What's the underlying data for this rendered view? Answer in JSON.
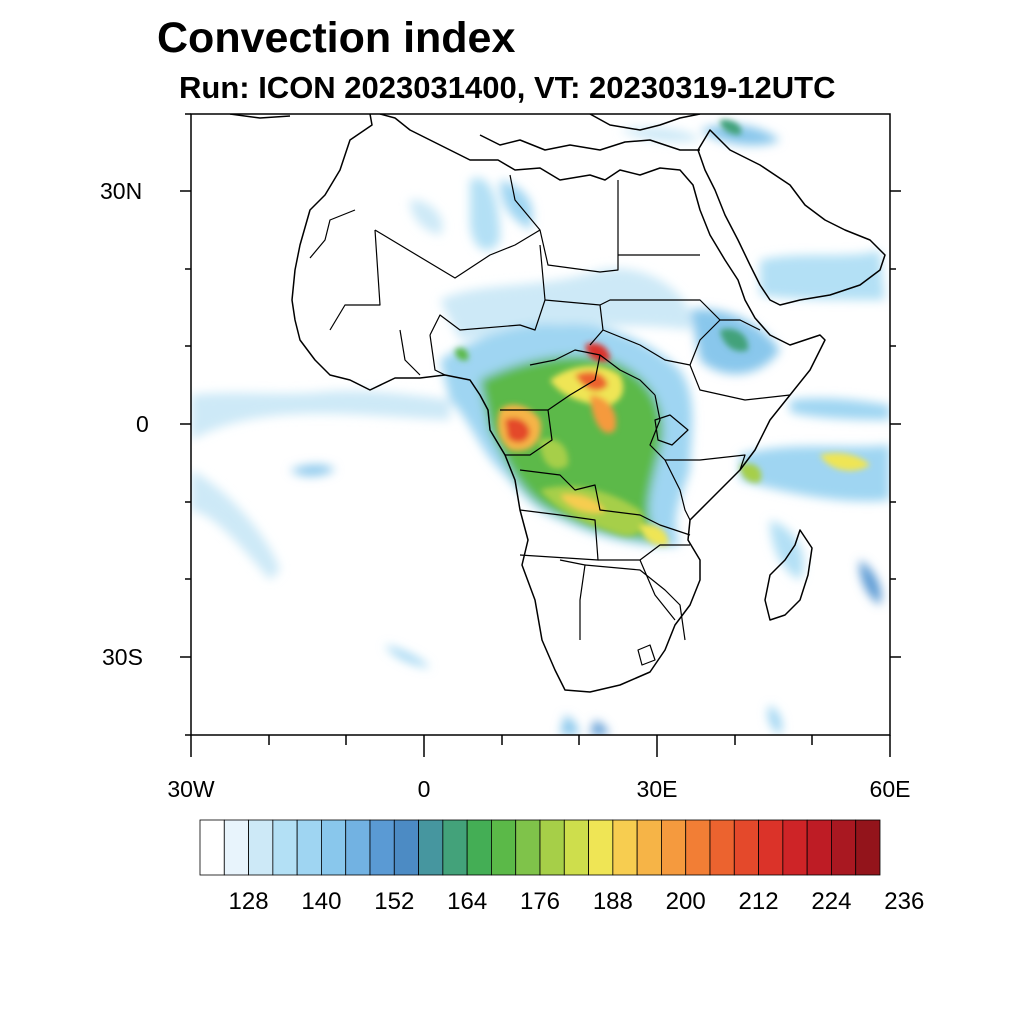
{
  "title": "Convection index",
  "subtitle": "Run: ICON 2023031400,  VT: 20230319-12UTC",
  "axes": {
    "lon_range": [
      -30,
      60
    ],
    "lat_range": [
      -40,
      40
    ],
    "y_labels": [
      "30N",
      "0",
      "30S"
    ],
    "x_labels": [
      "30W",
      "0",
      "30E",
      "60E"
    ]
  },
  "colorbar": {
    "labels": [
      "128",
      "140",
      "152",
      "164",
      "176",
      "188",
      "200",
      "212",
      "224",
      "236"
    ],
    "colors": [
      "#ffffff",
      "#e8f4fc",
      "#cde9f7",
      "#b3e0f5",
      "#9fd5f2",
      "#89c7ec",
      "#72b2e2",
      "#5a9ad4",
      "#4c8bc4",
      "#46969f",
      "#43a27a",
      "#44ae55",
      "#5bb948",
      "#7fc34a",
      "#a6cf48",
      "#cede4c",
      "#efe555",
      "#f7cd50",
      "#f6b447",
      "#f59a3e",
      "#f27e35",
      "#ec632f",
      "#e4492b",
      "#db3329",
      "#ce2427",
      "#be1c25",
      "#a91821",
      "#93141b"
    ]
  }
}
